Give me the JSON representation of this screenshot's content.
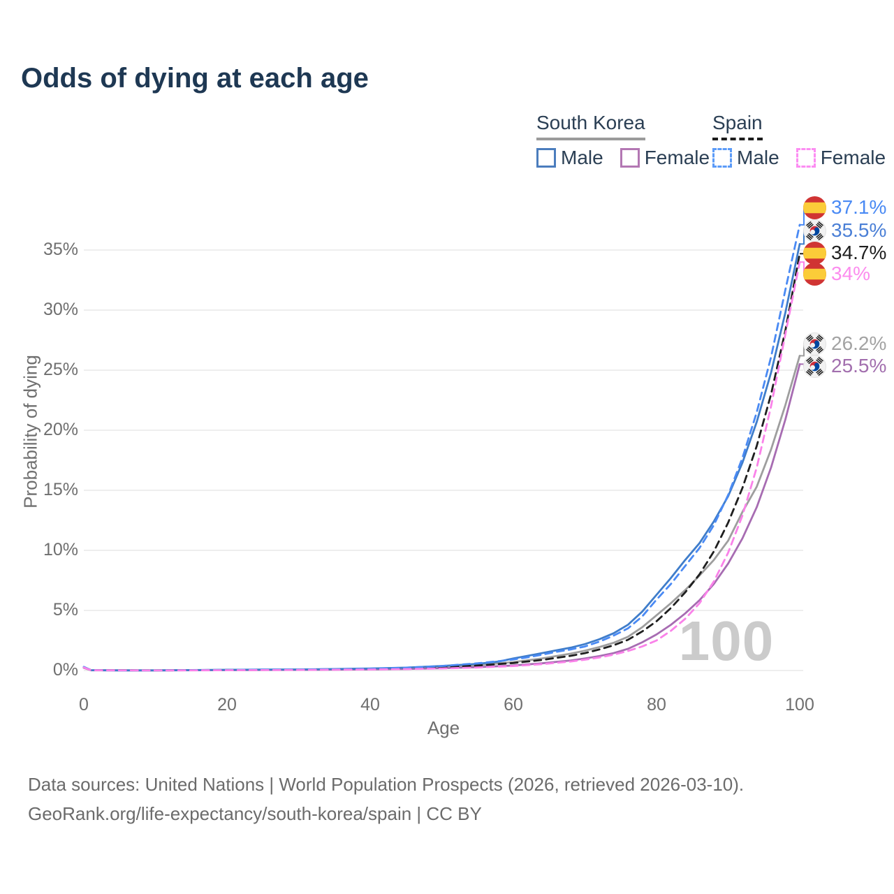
{
  "title": "Odds of dying at each age",
  "legend": {
    "groups": [
      {
        "label": "South Korea",
        "line_style": "solid",
        "underline_color": "#9b9b9b",
        "items": [
          {
            "label": "Male",
            "color": "#4b7dbd",
            "dash": false
          },
          {
            "label": "Female",
            "color": "#b377b3",
            "dash": false
          }
        ]
      },
      {
        "label": "Spain",
        "line_style": "dashed",
        "underline_color": "#1c1c1c",
        "items": [
          {
            "label": "Male",
            "color": "#5b9bf8",
            "dash": true
          },
          {
            "label": "Female",
            "color": "#fc8df2",
            "dash": true
          }
        ]
      }
    ]
  },
  "chart_data": {
    "type": "line",
    "title": "Odds of dying at each age",
    "xlabel": "Age",
    "ylabel": "Probability of dying",
    "xlim": [
      0,
      100
    ],
    "ylim": [
      0,
      38.5
    ],
    "grid": "horizontal",
    "watermark": "100",
    "x_ticks": [
      {
        "value": 0,
        "label": "0"
      },
      {
        "value": 20,
        "label": "20"
      },
      {
        "value": 40,
        "label": "40"
      },
      {
        "value": 60,
        "label": "60"
      },
      {
        "value": 80,
        "label": "80"
      },
      {
        "value": 100,
        "label": "100"
      }
    ],
    "y_ticks": [
      {
        "value": 0,
        "label": "0%"
      },
      {
        "value": 5,
        "label": "5%"
      },
      {
        "value": 10,
        "label": "10%"
      },
      {
        "value": 15,
        "label": "15%"
      },
      {
        "value": 20,
        "label": "20%"
      },
      {
        "value": 25,
        "label": "25%"
      },
      {
        "value": 30,
        "label": "30%"
      },
      {
        "value": 35,
        "label": "35%"
      }
    ],
    "series": [
      {
        "id": "kr_all",
        "name": "South Korea (both sexes)",
        "color": "#9e9e9e",
        "dash": false,
        "end_label": {
          "text": "26.2%",
          "value": 26.2,
          "flag": "south-korea-flag",
          "color": "#a3a3a3"
        },
        "points": [
          [
            0,
            0.24
          ],
          [
            1,
            0.025
          ],
          [
            10,
            0.01
          ],
          [
            20,
            0.045
          ],
          [
            30,
            0.07
          ],
          [
            40,
            0.13
          ],
          [
            45,
            0.19
          ],
          [
            50,
            0.29
          ],
          [
            55,
            0.45
          ],
          [
            60,
            0.7
          ],
          [
            64,
            1.0
          ],
          [
            68,
            1.4
          ],
          [
            70,
            1.65
          ],
          [
            72,
            1.95
          ],
          [
            74,
            2.3
          ],
          [
            76,
            2.8
          ],
          [
            78,
            3.6
          ],
          [
            80,
            4.6
          ],
          [
            82,
            5.6
          ],
          [
            84,
            6.7
          ],
          [
            86,
            7.9
          ],
          [
            88,
            9.2
          ],
          [
            90,
            10.8
          ],
          [
            92,
            13.2
          ],
          [
            94,
            15.3
          ],
          [
            96,
            18.4
          ],
          [
            98,
            22.1
          ],
          [
            100,
            26.2
          ]
        ]
      },
      {
        "id": "kr_f",
        "name": "South Korea Female",
        "color": "#a76cb2",
        "dash": false,
        "end_label": {
          "text": "25.5%",
          "value": 25.5,
          "flag": "south-korea-flag",
          "color": "#a26fae"
        },
        "points": [
          [
            0,
            0.22
          ],
          [
            1,
            0.02
          ],
          [
            10,
            0.008
          ],
          [
            20,
            0.03
          ],
          [
            30,
            0.05
          ],
          [
            40,
            0.09
          ],
          [
            45,
            0.13
          ],
          [
            50,
            0.19
          ],
          [
            55,
            0.28
          ],
          [
            60,
            0.42
          ],
          [
            64,
            0.6
          ],
          [
            68,
            0.84
          ],
          [
            70,
            1.0
          ],
          [
            72,
            1.2
          ],
          [
            74,
            1.45
          ],
          [
            76,
            1.8
          ],
          [
            78,
            2.35
          ],
          [
            80,
            3.0
          ],
          [
            82,
            3.8
          ],
          [
            84,
            4.75
          ],
          [
            86,
            5.85
          ],
          [
            88,
            7.2
          ],
          [
            90,
            8.9
          ],
          [
            92,
            11.0
          ],
          [
            94,
            13.6
          ],
          [
            96,
            16.9
          ],
          [
            98,
            20.9
          ],
          [
            100,
            25.5
          ]
        ]
      },
      {
        "id": "kr_m",
        "name": "South Korea Male",
        "color": "#3f7dca",
        "dash": false,
        "end_label": {
          "text": "35.5%",
          "value": 35.5,
          "flag": "south-korea-flag",
          "color": "#4a7fd6"
        },
        "points": [
          [
            0,
            0.26
          ],
          [
            1,
            0.03
          ],
          [
            5,
            0.012
          ],
          [
            10,
            0.012
          ],
          [
            15,
            0.035
          ],
          [
            20,
            0.06
          ],
          [
            25,
            0.08
          ],
          [
            30,
            0.09
          ],
          [
            35,
            0.12
          ],
          [
            40,
            0.17
          ],
          [
            45,
            0.24
          ],
          [
            50,
            0.38
          ],
          [
            55,
            0.55
          ],
          [
            58,
            0.75
          ],
          [
            60,
            1.0
          ],
          [
            62,
            1.22
          ],
          [
            64,
            1.45
          ],
          [
            66,
            1.68
          ],
          [
            68,
            1.9
          ],
          [
            70,
            2.2
          ],
          [
            72,
            2.6
          ],
          [
            74,
            3.1
          ],
          [
            76,
            3.8
          ],
          [
            78,
            4.9
          ],
          [
            80,
            6.3
          ],
          [
            82,
            7.7
          ],
          [
            84,
            9.2
          ],
          [
            86,
            10.6
          ],
          [
            88,
            12.4
          ],
          [
            90,
            14.5
          ],
          [
            92,
            17.3
          ],
          [
            94,
            20.7
          ],
          [
            96,
            24.8
          ],
          [
            98,
            29.8
          ],
          [
            100,
            35.5
          ]
        ]
      },
      {
        "id": "es_all",
        "name": "Spain (both sexes)",
        "color": "#1f1f1f",
        "dash": true,
        "end_label": {
          "text": "34.7%",
          "value": 34.7,
          "flag": "spain-flag",
          "color": "#1f1f1f"
        },
        "points": [
          [
            0,
            0.27
          ],
          [
            1,
            0.028
          ],
          [
            10,
            0.01
          ],
          [
            20,
            0.04
          ],
          [
            30,
            0.06
          ],
          [
            40,
            0.11
          ],
          [
            45,
            0.17
          ],
          [
            50,
            0.26
          ],
          [
            55,
            0.41
          ],
          [
            60,
            0.62
          ],
          [
            64,
            0.88
          ],
          [
            68,
            1.22
          ],
          [
            70,
            1.45
          ],
          [
            72,
            1.75
          ],
          [
            74,
            2.1
          ],
          [
            76,
            2.55
          ],
          [
            78,
            3.25
          ],
          [
            80,
            4.1
          ],
          [
            82,
            5.2
          ],
          [
            84,
            6.5
          ],
          [
            86,
            8.0
          ],
          [
            88,
            9.9
          ],
          [
            90,
            12.3
          ],
          [
            92,
            15.2
          ],
          [
            94,
            18.7
          ],
          [
            96,
            23.0
          ],
          [
            98,
            28.3
          ],
          [
            100,
            34.7
          ]
        ]
      },
      {
        "id": "es_m",
        "name": "Spain Male",
        "color": "#4a8af4",
        "dash": true,
        "end_label": {
          "text": "37.1%",
          "value": 37.1,
          "flag": "spain-flag",
          "color": "#4a8af4"
        },
        "points": [
          [
            0,
            0.3
          ],
          [
            1,
            0.03
          ],
          [
            5,
            0.01
          ],
          [
            10,
            0.01
          ],
          [
            15,
            0.03
          ],
          [
            20,
            0.05
          ],
          [
            25,
            0.07
          ],
          [
            30,
            0.08
          ],
          [
            35,
            0.11
          ],
          [
            40,
            0.15
          ],
          [
            45,
            0.23
          ],
          [
            50,
            0.37
          ],
          [
            55,
            0.6
          ],
          [
            58,
            0.78
          ],
          [
            60,
            0.92
          ],
          [
            62,
            1.1
          ],
          [
            64,
            1.32
          ],
          [
            66,
            1.55
          ],
          [
            68,
            1.75
          ],
          [
            70,
            2.0
          ],
          [
            72,
            2.4
          ],
          [
            74,
            2.9
          ],
          [
            76,
            3.5
          ],
          [
            78,
            4.5
          ],
          [
            80,
            5.9
          ],
          [
            82,
            7.2
          ],
          [
            84,
            8.7
          ],
          [
            86,
            10.2
          ],
          [
            88,
            12.1
          ],
          [
            90,
            14.6
          ],
          [
            92,
            17.7
          ],
          [
            94,
            21.5
          ],
          [
            96,
            26.1
          ],
          [
            98,
            31.7
          ],
          [
            100,
            37.1
          ]
        ]
      },
      {
        "id": "es_f",
        "name": "Spain Female",
        "color": "#fa82e9",
        "dash": true,
        "end_label": {
          "text": "34%",
          "value": 34,
          "flag": "spain-flag",
          "color": "#fc8cee"
        },
        "points": [
          [
            0,
            0.25
          ],
          [
            1,
            0.022
          ],
          [
            10,
            0.008
          ],
          [
            20,
            0.025
          ],
          [
            30,
            0.045
          ],
          [
            40,
            0.08
          ],
          [
            45,
            0.115
          ],
          [
            50,
            0.17
          ],
          [
            55,
            0.25
          ],
          [
            60,
            0.37
          ],
          [
            64,
            0.53
          ],
          [
            68,
            0.75
          ],
          [
            70,
            0.9
          ],
          [
            72,
            1.08
          ],
          [
            74,
            1.32
          ],
          [
            76,
            1.62
          ],
          [
            78,
            2.0
          ],
          [
            80,
            2.5
          ],
          [
            82,
            3.3
          ],
          [
            84,
            4.3
          ],
          [
            86,
            5.6
          ],
          [
            88,
            7.4
          ],
          [
            90,
            9.8
          ],
          [
            92,
            12.9
          ],
          [
            94,
            16.9
          ],
          [
            96,
            22.0
          ],
          [
            98,
            28.0
          ],
          [
            100,
            34.0
          ]
        ]
      }
    ]
  },
  "footer": {
    "line1": "Data sources: United Nations | World Population Prospects (2026, retrieved 2026-03-10).",
    "line2": "GeoRank.org/life-expectancy/south-korea/spain | CC BY"
  }
}
